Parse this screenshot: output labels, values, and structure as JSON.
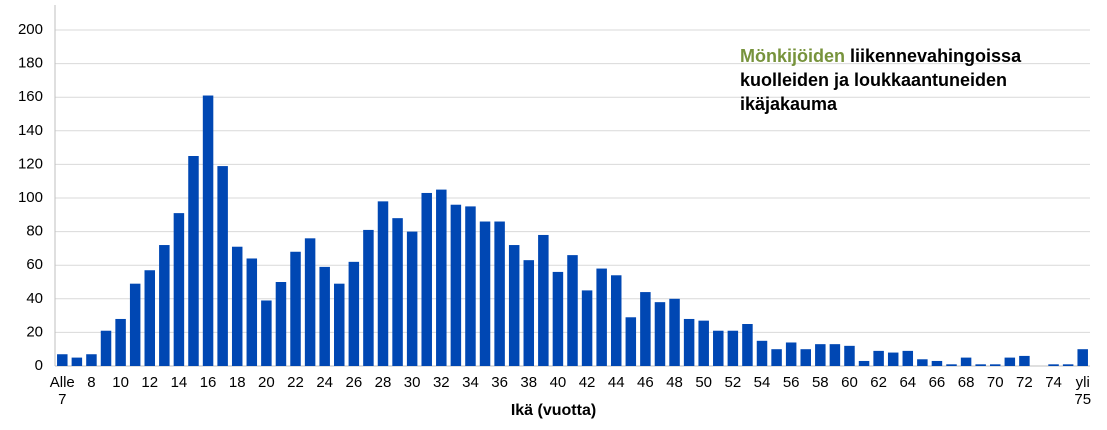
{
  "chart_data": {
    "type": "bar",
    "title_highlight": "Mönkijöiden",
    "title": "liikennevahingoissa kuolleiden ja loukkaantuneiden ikäjakauma",
    "title_highlight_color": "#77933c",
    "xlabel": "Ikä (vuotta)",
    "categories": [
      "Alle\n7",
      null,
      "8",
      null,
      "10",
      null,
      "12",
      null,
      "14",
      null,
      "16",
      null,
      "18",
      null,
      "20",
      null,
      "22",
      null,
      "24",
      null,
      "26",
      null,
      "28",
      null,
      "30",
      null,
      "32",
      null,
      "34",
      null,
      "36",
      null,
      "38",
      null,
      "40",
      null,
      "42",
      null,
      "44",
      null,
      "46",
      null,
      "48",
      null,
      "50",
      null,
      "52",
      null,
      "54",
      null,
      "56",
      null,
      "58",
      null,
      "60",
      null,
      "62",
      null,
      "64",
      null,
      "66",
      null,
      "68",
      null,
      "70",
      null,
      "72",
      null,
      "74",
      null,
      "yli\n75"
    ],
    "values": [
      7,
      5,
      7,
      21,
      28,
      49,
      57,
      72,
      91,
      125,
      161,
      119,
      71,
      64,
      39,
      50,
      68,
      76,
      59,
      49,
      62,
      81,
      98,
      88,
      80,
      103,
      105,
      96,
      95,
      86,
      86,
      72,
      63,
      78,
      56,
      66,
      45,
      58,
      54,
      29,
      44,
      38,
      40,
      28,
      27,
      21,
      21,
      25,
      15,
      10,
      14,
      10,
      13,
      13,
      12,
      3,
      9,
      8,
      9,
      4,
      3,
      1,
      5,
      1,
      1,
      5,
      6,
      0,
      1,
      1,
      10
    ],
    "color": "#0047b3",
    "ylim": [
      0,
      200
    ],
    "yticks": [
      0,
      20,
      40,
      60,
      80,
      100,
      120,
      140,
      160,
      180,
      200
    ],
    "grid": true
  }
}
